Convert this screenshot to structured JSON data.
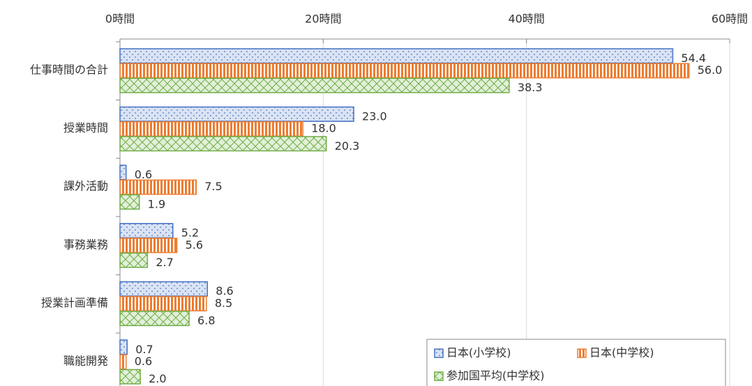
{
  "chart_data": {
    "type": "bar",
    "orientation": "horizontal",
    "categories": [
      "仕事時間の合計",
      "授業時間",
      "課外活動",
      "事務業務",
      "授業計画準備",
      "職能開発"
    ],
    "series": [
      {
        "name": "日本(小学校)",
        "color": "#4472c4",
        "values": [
          54.4,
          23.0,
          0.6,
          5.2,
          8.6,
          0.7
        ],
        "value_labels": [
          "54.4",
          "23.0",
          "0.6",
          "5.2",
          "8.6",
          "0.7"
        ]
      },
      {
        "name": "日本(中学校)",
        "color": "#ed7d31",
        "values": [
          56.0,
          18.0,
          7.5,
          5.6,
          8.5,
          0.6
        ],
        "value_labels": [
          "56.0",
          "18.0",
          "7.5",
          "5.6",
          "8.5",
          "0.6"
        ]
      },
      {
        "name": "参加国平均(中学校)",
        "color": "#70ad47",
        "values": [
          38.3,
          20.3,
          1.9,
          2.7,
          6.8,
          2.0
        ],
        "value_labels": [
          "38.3",
          "20.3",
          "1.9",
          "2.7",
          "6.8",
          "2.0"
        ]
      }
    ],
    "xlim": [
      0,
      60
    ],
    "xticks": [
      {
        "value": 0,
        "label": "0時間"
      },
      {
        "value": 20,
        "label": "20時間"
      },
      {
        "value": 40,
        "label": "40時間"
      },
      {
        "value": 60,
        "label": "60時間"
      }
    ],
    "grid": true,
    "legend": "lower right"
  }
}
